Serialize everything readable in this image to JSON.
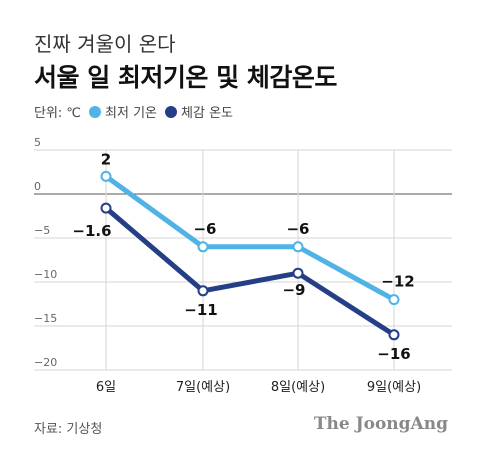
{
  "header": {
    "subtitle": "진짜 겨울이 온다",
    "title": "서울 일 최저기온 및 체감온도"
  },
  "legend": {
    "unit_label": "단위: ℃",
    "items": [
      {
        "label": "최저 기온",
        "color": "#4fb3e6"
      },
      {
        "label": "체감 온도",
        "color": "#253f86"
      }
    ]
  },
  "chart_data": {
    "type": "line",
    "categories": [
      "6일",
      "7일(예상)",
      "8일(예상)",
      "9일(예상)"
    ],
    "series": [
      {
        "name": "최저 기온",
        "values": [
          2,
          -6,
          -6,
          -12
        ],
        "labels": [
          "2",
          "−6",
          "−6",
          "−12"
        ],
        "color": "#4fb3e6"
      },
      {
        "name": "체감 온도",
        "values": [
          -1.6,
          -11,
          -9,
          -16
        ],
        "labels": [
          "−1.6",
          "−11",
          "−9",
          "−16"
        ],
        "color": "#253f86"
      }
    ],
    "yticks": [
      5,
      0,
      -5,
      -10,
      -15,
      -20
    ],
    "ytick_labels": [
      "5",
      "0",
      "−5",
      "−10",
      "−15",
      "−20"
    ],
    "ylim": [
      -20,
      5
    ],
    "grid": true
  },
  "footer": {
    "source": "자료: 기상청",
    "brand": "The JoongAng"
  }
}
